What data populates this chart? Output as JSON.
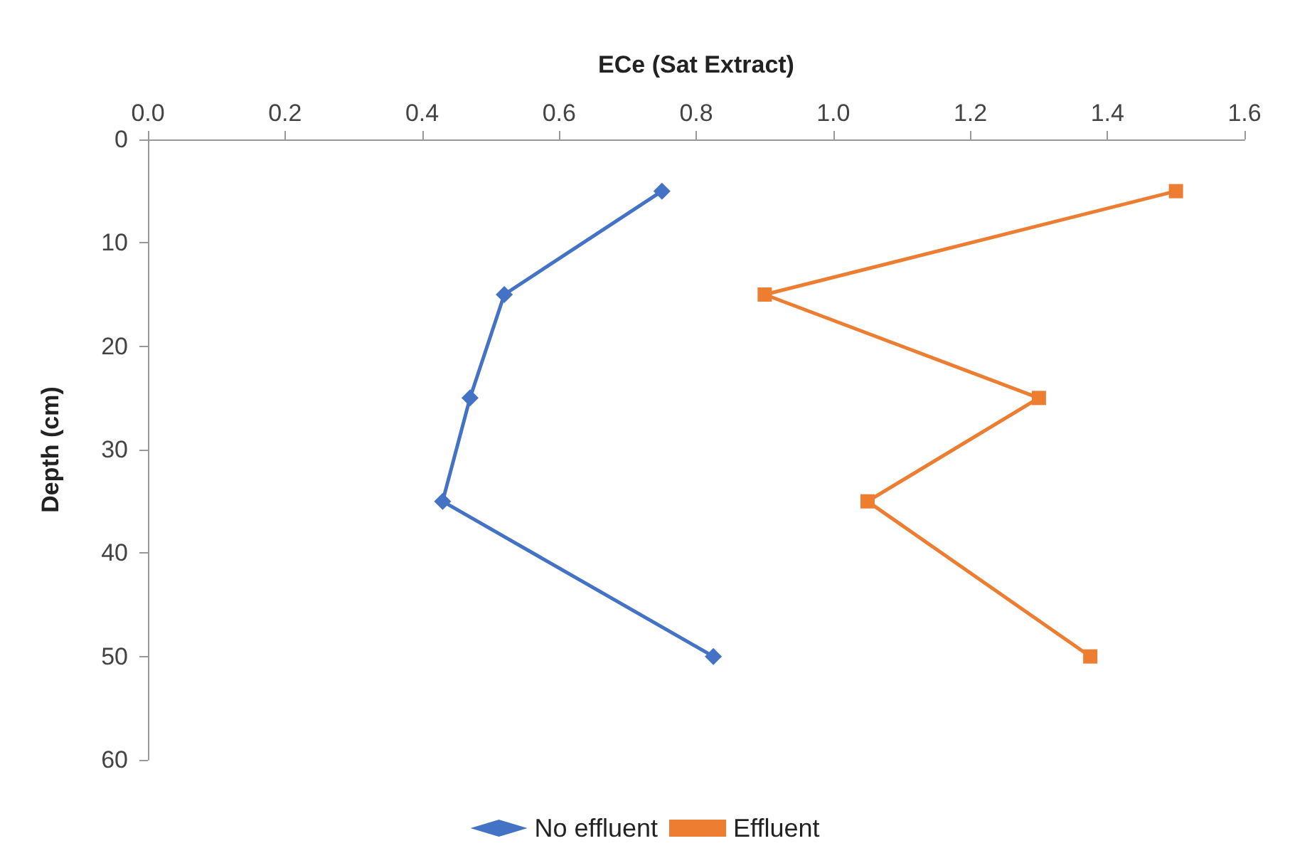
{
  "chart_data": {
    "type": "line",
    "xlabel": "ECe (Sat Extract)",
    "ylabel": "Depth (cm)",
    "xlim": [
      0,
      1.6
    ],
    "xticks": [
      {
        "value": 0,
        "label": "0.0"
      },
      {
        "value": 0.2,
        "label": "0.2"
      },
      {
        "value": 0.4,
        "label": "0.4"
      },
      {
        "value": 0.6,
        "label": "0.6"
      },
      {
        "value": 0.8,
        "label": "0.8"
      },
      {
        "value": 1.0,
        "label": "1.0"
      },
      {
        "value": 1.2,
        "label": "1.2"
      },
      {
        "value": 1.4,
        "label": "1.4"
      },
      {
        "value": 1.6,
        "label": "1.6"
      }
    ],
    "ylim": [
      60,
      0
    ],
    "yticks": [
      0,
      10,
      20,
      30,
      40,
      50,
      60
    ],
    "grid": false,
    "legend": "bottom",
    "line_style": "solid",
    "series": [
      {
        "name": "No effluent",
        "color": "#4472c4",
        "marker": "diamond",
        "x": [
          0.75,
          0.52,
          0.47,
          0.43,
          0.825
        ],
        "values": [
          5,
          15,
          25,
          35,
          50
        ]
      },
      {
        "name": "Effluent",
        "color": "#ed7d31",
        "marker": "square",
        "x": [
          1.5,
          0.9,
          1.3,
          1.05,
          1.375
        ],
        "values": [
          5,
          15,
          25,
          35,
          50
        ]
      }
    ]
  }
}
